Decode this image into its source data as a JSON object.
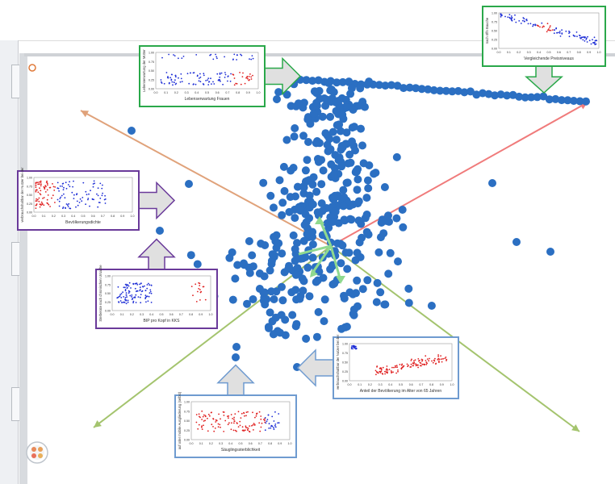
{
  "colors": {
    "point": "#2b6fc2",
    "thumb_blue": "#1f2fd6",
    "thumb_red": "#e02020",
    "box_green": "#2aa84a",
    "box_purple": "#6a3a9a",
    "box_blue": "#6f9bd0",
    "axis_green": "#a4c46e",
    "axis_orange": "#e0a27a",
    "axis_red": "#f07b7b"
  },
  "chart_data": [
    {
      "type": "scatter",
      "name": "main",
      "title": "",
      "xlabel": "",
      "ylabel": "",
      "description": "Star-coordinates projection of countries with five dimension axes",
      "x_range": [
        -1,
        1
      ],
      "y_range": [
        -1,
        1
      ]
    },
    {
      "type": "scatter",
      "name": "thumb-lebenserwartung",
      "xlabel": "Lebenserwartung Frauen",
      "ylabel": "Lebenserwartung der Mütter",
      "xticks": [
        "0.0",
        "0.1",
        "0.2",
        "0.3",
        "0.4",
        "0.5",
        "0.6",
        "0.7",
        "0.8",
        "0.9",
        "1.0"
      ],
      "yticks": [
        "1.00",
        "0.75",
        "0.50",
        "0.25",
        "0.00"
      ]
    },
    {
      "type": "scatter",
      "name": "thumb-vergleichende",
      "xlabel": "Vergleichende Preisniveaus",
      "ylabel": "nach öffn Bauche",
      "xticks": [
        "0.0",
        "0.1",
        "0.2",
        "0.3",
        "0.4",
        "0.5",
        "0.6",
        "0.7",
        "0.8",
        "0.9",
        "1.0"
      ],
      "yticks": [
        "1.00",
        "0.75",
        "0.50",
        "0.25",
        "0.00"
      ]
    },
    {
      "type": "scatter",
      "name": "thumb-bevoelkerungsdichte",
      "xlabel": "Bevölkerungsdichte",
      "ylabel": "verbrauchshaltbar der Nutzer bei der",
      "xticks": [
        "0.0",
        "0.1",
        "0.2",
        "0.3",
        "0.4",
        "0.5",
        "0.6",
        "0.7",
        "0.8",
        "0.9",
        "1.0"
      ],
      "yticks": [
        "1.00",
        "0.75",
        "0.50",
        "0.25",
        "0.00"
      ]
    },
    {
      "type": "scatter",
      "name": "thumb-bip",
      "xlabel": "BIP pro Kopf in KKS",
      "ylabel": "Sterberate nach chronischen Ursache",
      "xticks": [
        "0.0",
        "0.1",
        "0.2",
        "0.3",
        "0.4",
        "0.5",
        "0.6",
        "0.7",
        "0.8",
        "0.9",
        "1.0"
      ],
      "yticks": [
        "1.00",
        "0.75",
        "0.50",
        "0.25",
        "0.00"
      ]
    },
    {
      "type": "scatter",
      "name": "thumb-anteil",
      "xlabel": "Anteil der Bevölkerung im Alter von 65 Jahren",
      "ylabel": "verbrauchshaltbar der Nutzer bei der",
      "xticks": [
        "0.0",
        "0.1",
        "0.2",
        "0.3",
        "0.4",
        "0.5",
        "0.6",
        "0.7",
        "0.8",
        "0.9",
        "1.0"
      ],
      "yticks": [
        "1.00",
        "0.75",
        "0.50",
        "0.25",
        "0.00"
      ]
    },
    {
      "type": "scatter",
      "name": "thumb-saeuglings",
      "xlabel": "Säuglingssterblichkeit",
      "ylabel": "auf oder mobile Ausgliederung (selbst)",
      "xticks": [
        "0.0",
        "0.1",
        "0.2",
        "0.3",
        "0.4",
        "0.5",
        "0.6",
        "0.7",
        "0.8",
        "0.9",
        "1.0"
      ],
      "yticks": [
        "1.00",
        "0.75",
        "0.50",
        "0.25",
        "0.00"
      ]
    }
  ]
}
